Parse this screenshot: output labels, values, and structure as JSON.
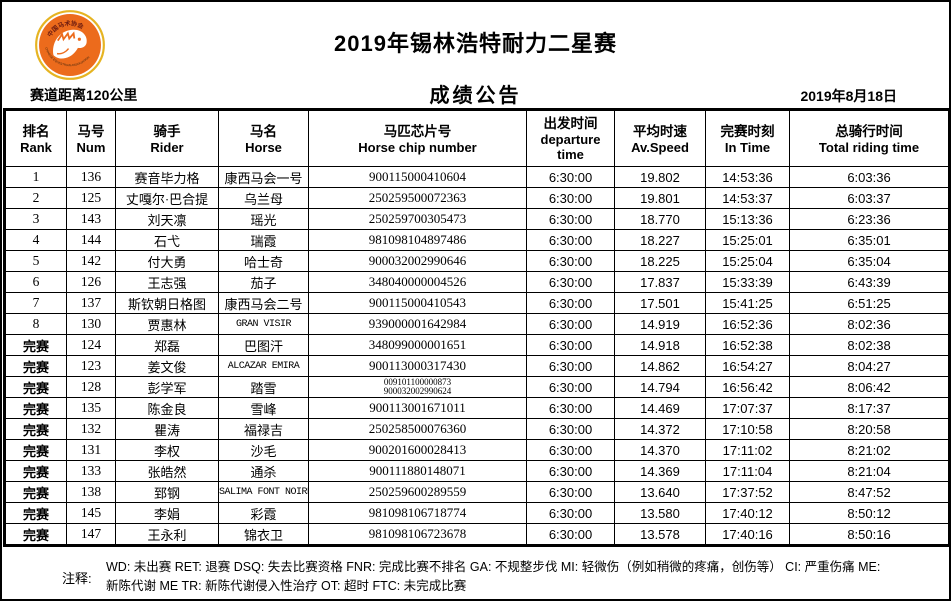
{
  "header": {
    "title": "2019年锡林浩特耐力二星赛",
    "subtitle": "成绩公告",
    "distance": "赛道距离120公里",
    "date": "2019年8月18日",
    "logo": {
      "icon": "horse-head-logo",
      "top_text": "中国马术协会",
      "bottom_text": "CHINESE EQUESTRIAN ASSOCIATION",
      "orange": "#ec6b1c",
      "gold": "#e6b422"
    }
  },
  "table": {
    "columns": [
      {
        "key": "rank",
        "zh": "排名",
        "en": "Rank"
      },
      {
        "key": "num",
        "zh": "马号",
        "en": "Num"
      },
      {
        "key": "rider",
        "zh": "骑手",
        "en": "Rider"
      },
      {
        "key": "horse",
        "zh": "马名",
        "en": "Horse"
      },
      {
        "key": "chip",
        "zh": "马匹芯片号",
        "en": "Horse chip  number"
      },
      {
        "key": "departure",
        "zh": "出发时间",
        "en": "departure time"
      },
      {
        "key": "speed",
        "zh": "平均时速",
        "en": "Av.Speed"
      },
      {
        "key": "in_time",
        "zh": "完赛时刻",
        "en": "In Time"
      },
      {
        "key": "total",
        "zh": "总骑行时间",
        "en": "Total riding time"
      }
    ],
    "rows": [
      {
        "rank": "1",
        "num": "136",
        "rider": "赛音毕力格",
        "horse": "康西马会一号",
        "chip": "900115000410604",
        "departure": "6:30:00",
        "speed": "19.802",
        "in_time": "14:53:36",
        "total": "6:03:36"
      },
      {
        "rank": "2",
        "num": "125",
        "rider": "丈嘎尔·巴合提",
        "horse": "乌兰母",
        "chip": "250259500072363",
        "departure": "6:30:00",
        "speed": "19.801",
        "in_time": "14:53:37",
        "total": "6:03:37"
      },
      {
        "rank": "3",
        "num": "143",
        "rider": "刘天凛",
        "horse": "瑶光",
        "chip": "250259700305473",
        "departure": "6:30:00",
        "speed": "18.770",
        "in_time": "15:13:36",
        "total": "6:23:36"
      },
      {
        "rank": "4",
        "num": "144",
        "rider": "石弋",
        "horse": "瑞霞",
        "chip": "981098104897486",
        "departure": "6:30:00",
        "speed": "18.227",
        "in_time": "15:25:01",
        "total": "6:35:01"
      },
      {
        "rank": "5",
        "num": "142",
        "rider": "付大勇",
        "horse": "哈士奇",
        "chip": "900032002990646",
        "departure": "6:30:00",
        "speed": "18.225",
        "in_time": "15:25:04",
        "total": "6:35:04"
      },
      {
        "rank": "6",
        "num": "126",
        "rider": "王志强",
        "horse": "茄子",
        "chip": "348040000004526",
        "departure": "6:30:00",
        "speed": "17.837",
        "in_time": "15:33:39",
        "total": "6:43:39"
      },
      {
        "rank": "7",
        "num": "137",
        "rider": "斯钦朝日格图",
        "horse": "康西马会二号",
        "chip": "900115000410543",
        "departure": "6:30:00",
        "speed": "17.501",
        "in_time": "15:41:25",
        "total": "6:51:25"
      },
      {
        "rank": "8",
        "num": "130",
        "rider": "贾惠林",
        "horse": "GRAN VISIR",
        "chip": "939000001642984",
        "departure": "6:30:00",
        "speed": "14.919",
        "in_time": "16:52:36",
        "total": "8:02:36"
      },
      {
        "rank": "完赛",
        "num": "124",
        "rider": "郑磊",
        "horse": "巴图汗",
        "chip": "348099000001651",
        "departure": "6:30:00",
        "speed": "14.918",
        "in_time": "16:52:38",
        "total": "8:02:38"
      },
      {
        "rank": "完赛",
        "num": "123",
        "rider": "姜文俊",
        "horse": "ALCAZAR EMIRA",
        "chip": "900113000317430",
        "departure": "6:30:00",
        "speed": "14.862",
        "in_time": "16:54:27",
        "total": "8:04:27"
      },
      {
        "rank": "完赛",
        "num": "128",
        "rider": "彭学军",
        "horse": "踏雪",
        "chip": "009101100000873",
        "chip2": "900032002990624",
        "departure": "6:30:00",
        "speed": "14.794",
        "in_time": "16:56:42",
        "total": "8:06:42"
      },
      {
        "rank": "完赛",
        "num": "135",
        "rider": "陈金良",
        "horse": "雪峰",
        "chip": "900113001671011",
        "departure": "6:30:00",
        "speed": "14.469",
        "in_time": "17:07:37",
        "total": "8:17:37"
      },
      {
        "rank": "完赛",
        "num": "132",
        "rider": "瞿涛",
        "horse": "福禄吉",
        "chip": "250258500076360",
        "departure": "6:30:00",
        "speed": "14.372",
        "in_time": "17:10:58",
        "total": "8:20:58"
      },
      {
        "rank": "完赛",
        "num": "131",
        "rider": "李权",
        "horse": "沙毛",
        "chip": "900201600028413",
        "departure": "6:30:00",
        "speed": "14.370",
        "in_time": "17:11:02",
        "total": "8:21:02"
      },
      {
        "rank": "完赛",
        "num": "133",
        "rider": "张皓然",
        "horse": "通杀",
        "chip": "900111880148071",
        "departure": "6:30:00",
        "speed": "14.369",
        "in_time": "17:11:04",
        "total": "8:21:04"
      },
      {
        "rank": "完赛",
        "num": "138",
        "rider": "郅钢",
        "horse": "SALIMA FONT NOIRE",
        "chip": "250259600289559",
        "departure": "6:30:00",
        "speed": "13.640",
        "in_time": "17:37:52",
        "total": "8:47:52"
      },
      {
        "rank": "完赛",
        "num": "145",
        "rider": "李娟",
        "horse": "彩霞",
        "chip": "981098106718774",
        "departure": "6:30:00",
        "speed": "13.580",
        "in_time": "17:40:12",
        "total": "8:50:12"
      },
      {
        "rank": "完赛",
        "num": "147",
        "rider": "王永利",
        "horse": "锦衣卫",
        "chip": "981098106723678",
        "departure": "6:30:00",
        "speed": "13.578",
        "in_time": "17:40:16",
        "total": "8:50:16"
      }
    ]
  },
  "notes": {
    "label": "注释:",
    "lines": [
      "WD: 未出赛 RET: 退赛 DSQ: 失去比赛资格 FNR: 完成比赛不排名 GA: 不规整步伐 MI: 轻微伤（例如稍微的疼痛，创伤等） CI: 严重伤痛 ME:",
      "新陈代谢 ME TR: 新陈代谢侵入性治疗 OT: 超时 FTC: 未完成比赛"
    ]
  }
}
